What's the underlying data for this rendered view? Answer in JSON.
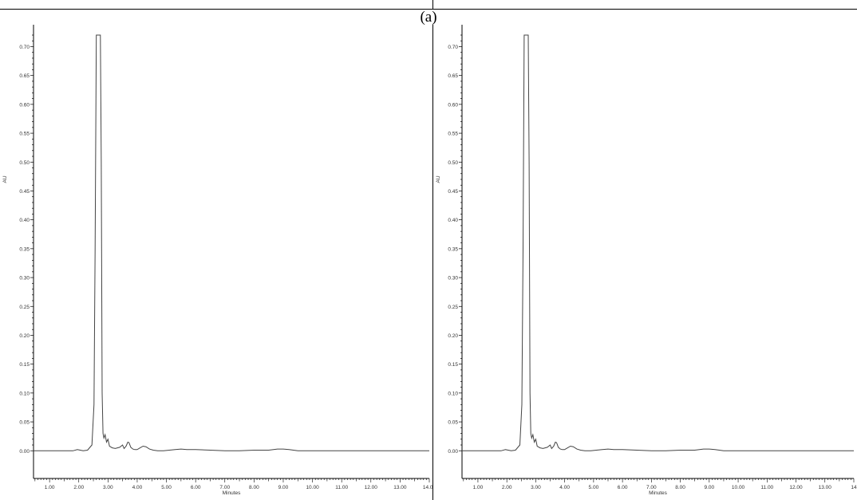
{
  "figure": {
    "panel_label": "(a)"
  },
  "chart_data": [
    {
      "type": "line",
      "xlabel": "Minutes",
      "ylabel": "AU",
      "xlim": [
        0.45,
        14.0
      ],
      "ylim": [
        -0.048,
        0.72
      ],
      "x_ticks": [
        "1.00",
        "2.00",
        "3.00",
        "4.00",
        "5.00",
        "6.00",
        "7.00",
        "8.00",
        "9.00",
        "10.00",
        "11.00",
        "12.00",
        "13.00",
        "14.00"
      ],
      "y_ticks": [
        "0.00",
        "0.05",
        "0.10",
        "0.15",
        "0.20",
        "0.25",
        "0.30",
        "0.35",
        "0.40",
        "0.45",
        "0.50",
        "0.55",
        "0.60",
        "0.65",
        "0.70"
      ],
      "grid": false,
      "series": [
        {
          "x": [
            0.45,
            1.8,
            1.95,
            2.05,
            2.15,
            2.3,
            2.45,
            2.52,
            2.56,
            2.6,
            2.64,
            2.7,
            2.74,
            2.77,
            2.8,
            2.83,
            2.86,
            2.9,
            2.95,
            3.0,
            3.05,
            3.15,
            3.25,
            3.4,
            3.5,
            3.55,
            3.62,
            3.68,
            3.72,
            3.78,
            3.85,
            3.92,
            4.0,
            4.1,
            4.2,
            4.3,
            4.42,
            4.55,
            4.7,
            4.9,
            5.1,
            5.3,
            5.5,
            5.7,
            6.0,
            6.5,
            7.0,
            7.5,
            8.0,
            8.5,
            8.8,
            9.0,
            9.2,
            9.5,
            10.0,
            10.5,
            11.0,
            12.0,
            13.0,
            14.0
          ],
          "y": [
            0.0,
            0.0,
            0.002,
            0.001,
            0.0,
            0.001,
            0.01,
            0.08,
            0.35,
            0.72,
            0.72,
            0.72,
            0.72,
            0.5,
            0.1,
            0.03,
            0.022,
            0.028,
            0.015,
            0.02,
            0.008,
            0.005,
            0.004,
            0.006,
            0.01,
            0.004,
            0.008,
            0.015,
            0.014,
            0.006,
            0.003,
            0.002,
            0.002,
            0.005,
            0.008,
            0.007,
            0.003,
            0.001,
            0.0,
            0.0,
            0.001,
            0.002,
            0.003,
            0.002,
            0.002,
            0.001,
            0.0,
            0.0,
            0.001,
            0.001,
            0.003,
            0.003,
            0.002,
            0.0,
            0.0,
            0.0,
            0.0,
            0.0,
            0.0,
            0.0
          ]
        }
      ]
    },
    {
      "type": "line",
      "xlabel": "Minutes",
      "ylabel": "AU",
      "xlim": [
        0.45,
        14.0
      ],
      "ylim": [
        -0.048,
        0.72
      ],
      "x_ticks": [
        "1.00",
        "2.00",
        "3.00",
        "4.00",
        "5.00",
        "6.00",
        "7.00",
        "8.00",
        "9.00",
        "10.00",
        "11.00",
        "12.00",
        "13.00",
        "14"
      ],
      "y_ticks": [
        "0.00",
        "0.05",
        "0.10",
        "0.15",
        "0.20",
        "0.25",
        "0.30",
        "0.35",
        "0.40",
        "0.45",
        "0.50",
        "0.55",
        "0.60",
        "0.65",
        "0.70"
      ],
      "grid": false,
      "series": [
        {
          "x": [
            0.45,
            1.8,
            1.95,
            2.05,
            2.15,
            2.3,
            2.45,
            2.52,
            2.56,
            2.6,
            2.64,
            2.7,
            2.74,
            2.77,
            2.8,
            2.83,
            2.86,
            2.9,
            2.95,
            3.0,
            3.05,
            3.15,
            3.25,
            3.4,
            3.5,
            3.55,
            3.62,
            3.68,
            3.72,
            3.78,
            3.85,
            3.92,
            4.0,
            4.1,
            4.2,
            4.3,
            4.42,
            4.55,
            4.7,
            4.9,
            5.1,
            5.3,
            5.5,
            5.7,
            6.0,
            6.5,
            7.0,
            7.5,
            8.0,
            8.5,
            8.8,
            9.0,
            9.2,
            9.5,
            10.0,
            10.5,
            11.0,
            12.0,
            13.0,
            14.0
          ],
          "y": [
            0.0,
            0.0,
            0.002,
            0.001,
            0.0,
            0.001,
            0.01,
            0.08,
            0.35,
            0.72,
            0.72,
            0.72,
            0.72,
            0.5,
            0.1,
            0.03,
            0.022,
            0.028,
            0.015,
            0.02,
            0.008,
            0.005,
            0.004,
            0.006,
            0.01,
            0.004,
            0.008,
            0.015,
            0.014,
            0.006,
            0.003,
            0.002,
            0.002,
            0.005,
            0.008,
            0.007,
            0.003,
            0.001,
            0.0,
            0.0,
            0.001,
            0.002,
            0.003,
            0.002,
            0.002,
            0.001,
            0.0,
            0.0,
            0.001,
            0.001,
            0.003,
            0.003,
            0.002,
            0.0,
            0.0,
            0.0,
            0.0,
            0.0,
            0.0,
            0.0
          ]
        }
      ]
    }
  ]
}
